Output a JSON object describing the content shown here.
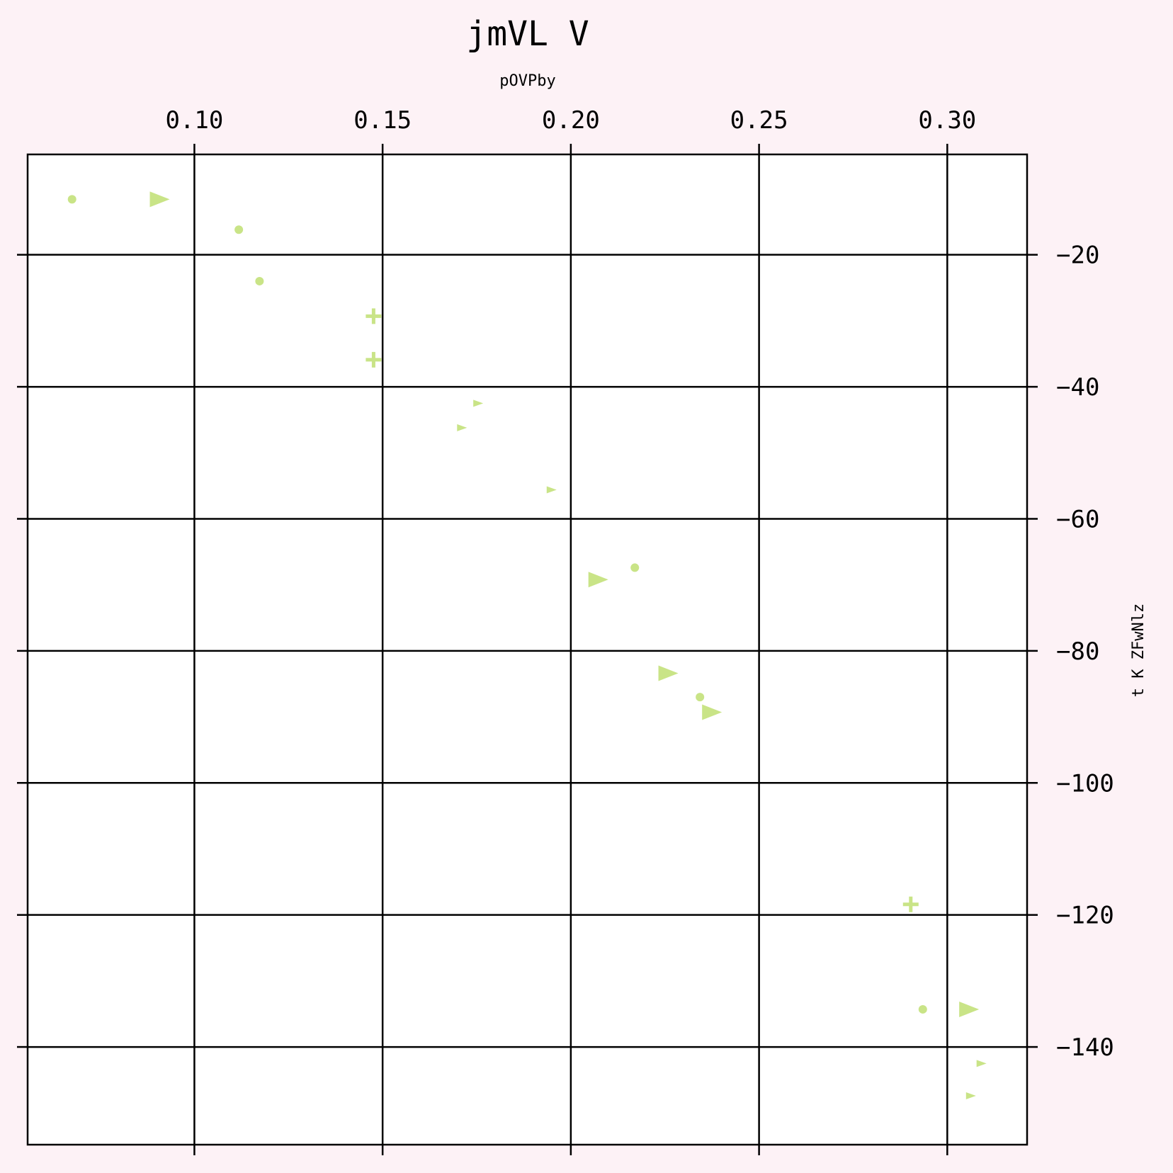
{
  "chart_data": {
    "type": "scatter",
    "title": "jmVL V",
    "xlabel": "pOVPby",
    "ylabel": "t  K ZFwNlz",
    "x_axis_position": "top",
    "y_axis_position": "right",
    "xlim": [
      0.0557,
      0.3212
    ],
    "ylim": [
      -154.8,
      -4.8
    ],
    "x_ticks": [
      0.1,
      0.15,
      0.2,
      0.25,
      0.3
    ],
    "x_tick_labels": [
      "0.10",
      "0.15",
      "0.20",
      "0.25",
      "0.30"
    ],
    "y_ticks": [
      -20,
      -40,
      -60,
      -80,
      -100,
      -120,
      -140
    ],
    "y_tick_labels": [
      "−20",
      "−40",
      "−60",
      "−80",
      "−100",
      "−120",
      "−140"
    ],
    "grid": true,
    "marker_color": "#c9e487",
    "background_color": "#fdf2f6",
    "plot_background": "#ffffff",
    "points": [
      {
        "x": 0.0675,
        "y": -11.6,
        "marker": "circle",
        "size": "small"
      },
      {
        "x": 0.0908,
        "y": -11.6,
        "marker": "triangle-right",
        "size": "large"
      },
      {
        "x": 0.1118,
        "y": -16.2,
        "marker": "circle",
        "size": "small"
      },
      {
        "x": 0.1173,
        "y": -24.0,
        "marker": "circle",
        "size": "small"
      },
      {
        "x": 0.1476,
        "y": -29.3,
        "marker": "plus",
        "size": "medium"
      },
      {
        "x": 0.1476,
        "y": -35.9,
        "marker": "plus",
        "size": "medium"
      },
      {
        "x": 0.1754,
        "y": -42.5,
        "marker": "triangle-right",
        "size": "small"
      },
      {
        "x": 0.1711,
        "y": -46.2,
        "marker": "triangle-right",
        "size": "small"
      },
      {
        "x": 0.1949,
        "y": -55.6,
        "marker": "triangle-right",
        "size": "small"
      },
      {
        "x": 0.217,
        "y": -67.4,
        "marker": "circle",
        "size": "small"
      },
      {
        "x": 0.2073,
        "y": -69.2,
        "marker": "triangle-right",
        "size": "large"
      },
      {
        "x": 0.2259,
        "y": -83.4,
        "marker": "triangle-right",
        "size": "large"
      },
      {
        "x": 0.2343,
        "y": -87.0,
        "marker": "circle",
        "size": "small"
      },
      {
        "x": 0.2375,
        "y": -89.3,
        "marker": "triangle-right",
        "size": "large"
      },
      {
        "x": 0.2903,
        "y": -118.4,
        "marker": "plus",
        "size": "medium"
      },
      {
        "x": 0.2935,
        "y": -134.3,
        "marker": "circle",
        "size": "small"
      },
      {
        "x": 0.3058,
        "y": -134.3,
        "marker": "triangle-right",
        "size": "large"
      },
      {
        "x": 0.3091,
        "y": -142.5,
        "marker": "triangle-right",
        "size": "small"
      },
      {
        "x": 0.3063,
        "y": -147.4,
        "marker": "triangle-right",
        "size": "small"
      }
    ]
  }
}
